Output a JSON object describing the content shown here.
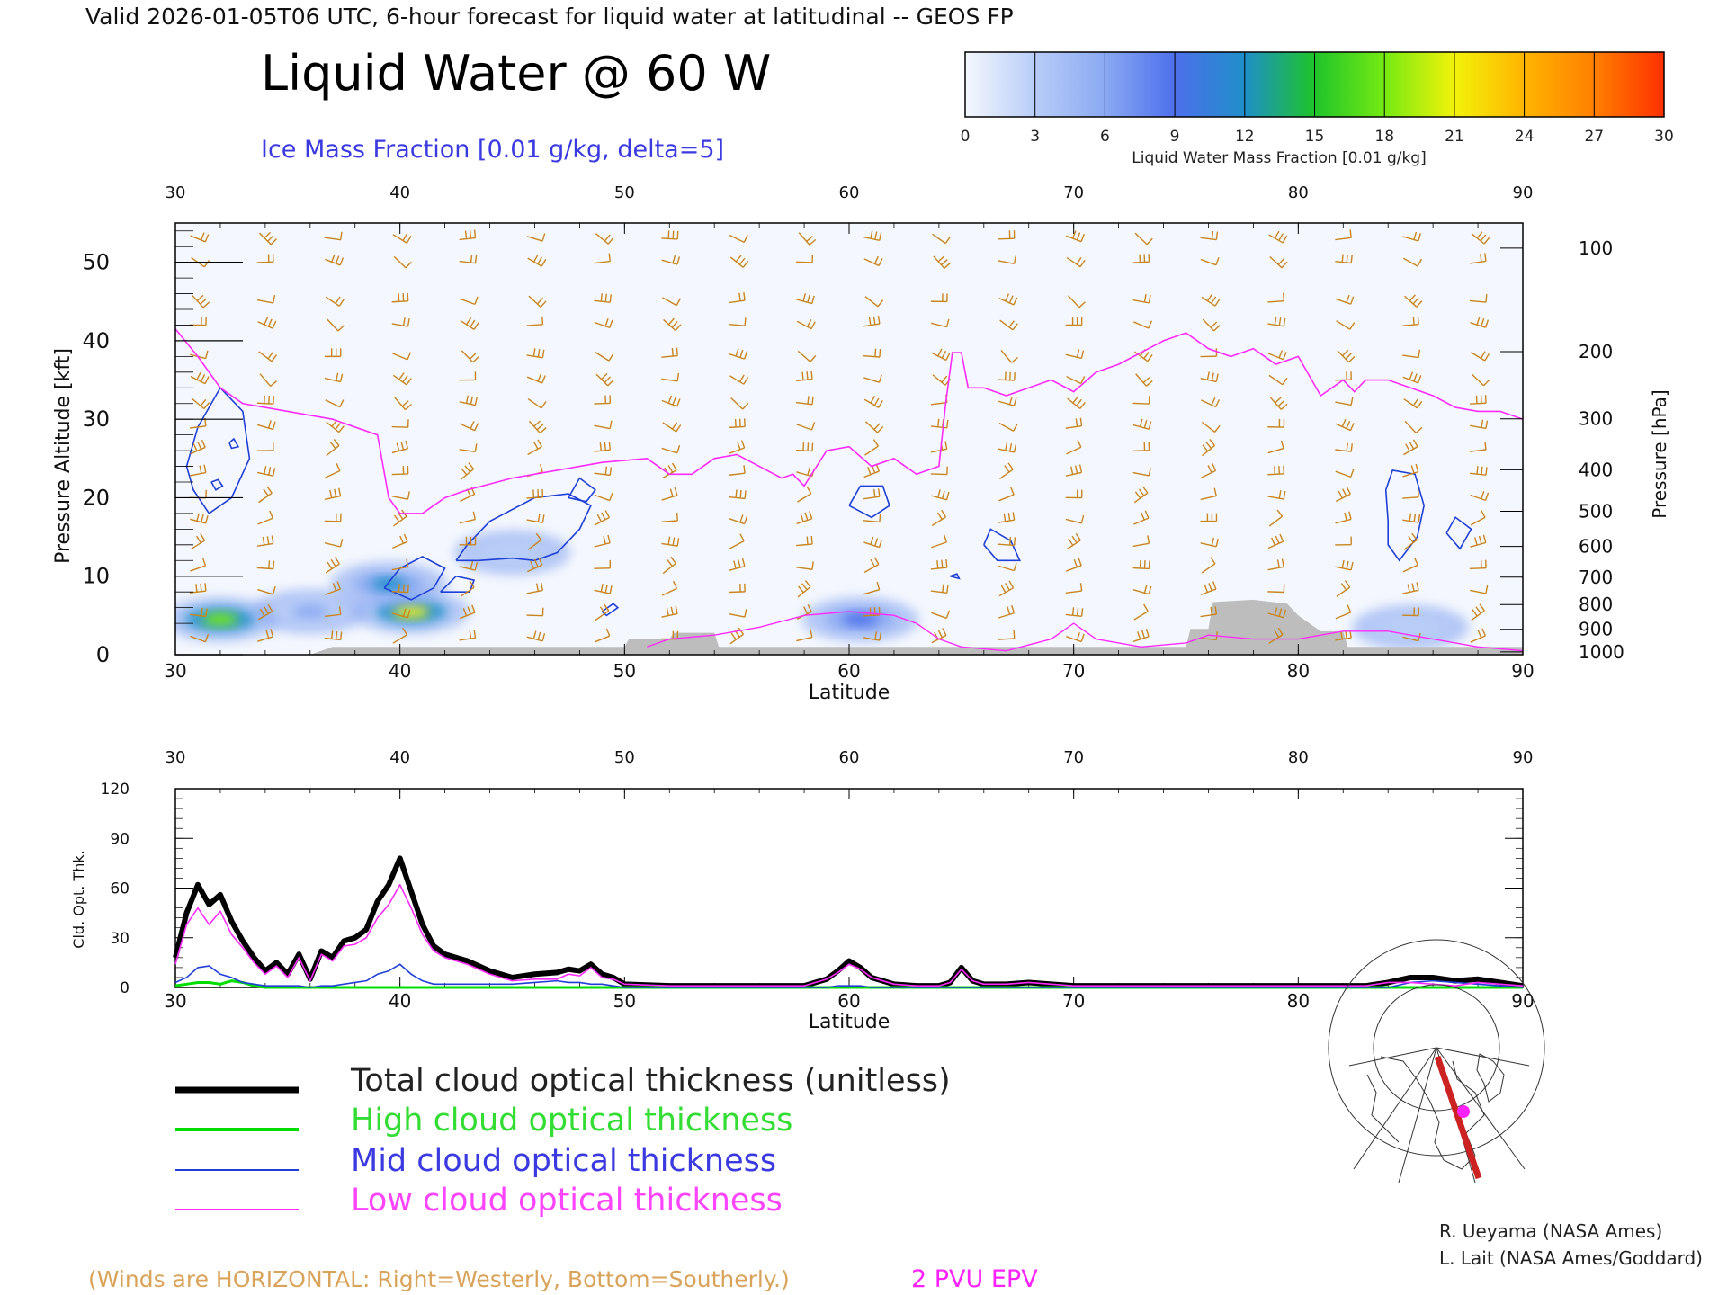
{
  "header": {
    "valid_line": "Valid 2026-01-05T06 UTC, 6-hour forecast for liquid water at latitudinal -- GEOS FP",
    "main_title": "Liquid Water @ 60 W",
    "ice_label": "Ice Mass Fraction [0.01 g/kg, delta=5]"
  },
  "colorbar": {
    "ticks": [
      "0",
      "3",
      "6",
      "9",
      "12",
      "15",
      "18",
      "21",
      "24",
      "27",
      "30"
    ],
    "label": "Liquid Water Mass Fraction [0.01 g/kg]",
    "colors": [
      "#f4f7fd",
      "#b8cdf7",
      "#8aa9f2",
      "#4d6fec",
      "#1f8fc9",
      "#1ec42a",
      "#75ea12",
      "#f2f20a",
      "#ffb400",
      "#ff7f00",
      "#ff3000"
    ]
  },
  "colors": {
    "wind_barb": "#c8861c",
    "epv": "#ff2bff",
    "ice_contour": "#1f3fd6",
    "terrain": "#bdbdbd",
    "total": "#000000",
    "high": "#00dd00",
    "mid": "#1f3fd6",
    "low": "#ff2bff"
  },
  "footer": {
    "winds_note": "(Winds are HORIZONTAL: Right=Westerly, Bottom=Southerly.)",
    "epv_label": "2 PVU EPV",
    "credit1": "R. Ueyama (NASA Ames)",
    "credit2": "L. Lait (NASA Ames/Goddard)"
  },
  "legend": {
    "total": "Total cloud optical thickness (unitless)",
    "high": "High cloud optical thickness",
    "mid": "Mid cloud optical thickness",
    "low": "Low cloud optical thickness"
  },
  "chart_data": [
    {
      "type": "heatmap",
      "title": "Liquid Water @ 60 W",
      "xlabel": "Latitude",
      "ylabel": "Pressure Altitude [kft]",
      "ylabel_right": "Pressure [hPa]",
      "xlim": [
        30,
        90
      ],
      "ylim": [
        0,
        55
      ],
      "x_ticks": [
        "30",
        "40",
        "50",
        "60",
        "70",
        "80",
        "90"
      ],
      "y_ticks": [
        "0",
        "10",
        "20",
        "30",
        "40",
        "50"
      ],
      "pressure_ticks": [
        "100",
        "200",
        "300",
        "400",
        "500",
        "600",
        "700",
        "800",
        "900",
        "1000"
      ],
      "epv_2pvu_line": [
        [
          30,
          41.5
        ],
        [
          31,
          38
        ],
        [
          32,
          34
        ],
        [
          33,
          32
        ],
        [
          35,
          31
        ],
        [
          37,
          30
        ],
        [
          39,
          28
        ],
        [
          39.5,
          20
        ],
        [
          40,
          18
        ],
        [
          41,
          18
        ],
        [
          42,
          20
        ],
        [
          43,
          21
        ],
        [
          45,
          22.5
        ],
        [
          47,
          23.5
        ],
        [
          49,
          24.5
        ],
        [
          51,
          25
        ],
        [
          52,
          23
        ],
        [
          53,
          23
        ],
        [
          54,
          25
        ],
        [
          55,
          25.5
        ],
        [
          56,
          24
        ],
        [
          57,
          22.5
        ],
        [
          57.5,
          23
        ],
        [
          58,
          21.5
        ],
        [
          59,
          26
        ],
        [
          60,
          26.5
        ],
        [
          61,
          24
        ],
        [
          62,
          25
        ],
        [
          63,
          23
        ],
        [
          64,
          24
        ],
        [
          64.3,
          32
        ],
        [
          64.6,
          38.5
        ],
        [
          65,
          38.5
        ],
        [
          65.3,
          34
        ],
        [
          66,
          34
        ],
        [
          67,
          33
        ],
        [
          68,
          34
        ],
        [
          69,
          35
        ],
        [
          70,
          33.5
        ],
        [
          71,
          36
        ],
        [
          72,
          37
        ],
        [
          73,
          38.5
        ],
        [
          74,
          40
        ],
        [
          75,
          41
        ],
        [
          76,
          39
        ],
        [
          77,
          38
        ],
        [
          78,
          39
        ],
        [
          79,
          37
        ],
        [
          80,
          38
        ],
        [
          81,
          33
        ],
        [
          82,
          35
        ],
        [
          82.5,
          33.5
        ],
        [
          83,
          35
        ],
        [
          84,
          35
        ],
        [
          85,
          34
        ],
        [
          86,
          33
        ],
        [
          87,
          31.5
        ],
        [
          88,
          31
        ],
        [
          89,
          31
        ],
        [
          90,
          30
        ]
      ],
      "epv_low_line": [
        [
          51,
          1
        ],
        [
          52,
          2
        ],
        [
          54,
          2.5
        ],
        [
          56,
          3.5
        ],
        [
          58,
          5
        ],
        [
          60,
          5.5
        ],
        [
          62,
          5
        ],
        [
          63,
          4
        ],
        [
          64,
          2
        ],
        [
          65,
          1
        ],
        [
          67,
          0.5
        ],
        [
          69,
          2
        ],
        [
          70,
          4
        ],
        [
          71,
          2
        ],
        [
          73,
          1
        ],
        [
          75,
          1.5
        ],
        [
          76,
          2.5
        ],
        [
          78,
          2
        ],
        [
          80,
          2
        ],
        [
          82,
          3
        ],
        [
          84,
          3
        ],
        [
          86,
          2
        ],
        [
          88,
          1
        ],
        [
          90,
          0.5
        ]
      ],
      "terrain": [
        [
          30,
          0
        ],
        [
          36,
          0
        ],
        [
          37,
          1
        ],
        [
          50,
          1
        ],
        [
          50.2,
          2
        ],
        [
          52,
          2
        ],
        [
          52.2,
          2.8
        ],
        [
          54,
          2.8
        ],
        [
          54.2,
          1
        ],
        [
          75,
          1
        ],
        [
          75.2,
          3.3
        ],
        [
          76,
          3.3
        ],
        [
          76.2,
          6.7
        ],
        [
          78,
          7
        ],
        [
          79.5,
          6.5
        ],
        [
          80,
          5
        ],
        [
          81,
          3
        ],
        [
          82,
          3
        ],
        [
          82.2,
          1
        ],
        [
          90,
          1
        ]
      ],
      "ice_contours": [
        [
          [
            30.5,
            24
          ],
          [
            31,
            29
          ],
          [
            32,
            34
          ],
          [
            33,
            31
          ],
          [
            33.3,
            25
          ],
          [
            32.5,
            20
          ],
          [
            31.5,
            18
          ],
          [
            30.8,
            21
          ],
          [
            30.5,
            24
          ]
        ],
        [
          [
            31.6,
            22
          ],
          [
            31.9,
            22.3
          ],
          [
            32.1,
            21.5
          ],
          [
            31.8,
            21
          ],
          [
            31.6,
            22
          ]
        ],
        [
          [
            32.4,
            27
          ],
          [
            32.6,
            27.5
          ],
          [
            32.8,
            26.5
          ],
          [
            32.5,
            26.3
          ],
          [
            32.4,
            27
          ]
        ],
        [
          [
            42.5,
            12
          ],
          [
            43,
            14
          ],
          [
            44,
            17
          ],
          [
            46,
            20
          ],
          [
            47.5,
            20.5
          ],
          [
            48.5,
            19
          ],
          [
            48,
            16
          ],
          [
            47,
            13
          ],
          [
            46,
            12
          ],
          [
            45,
            12.3
          ],
          [
            43.5,
            12
          ],
          [
            42.5,
            12
          ]
        ],
        [
          [
            47.5,
            20
          ],
          [
            48,
            22.5
          ],
          [
            48.7,
            21
          ],
          [
            48.3,
            19.5
          ],
          [
            47.5,
            20
          ]
        ],
        [
          [
            39.3,
            8.5
          ],
          [
            40,
            11
          ],
          [
            41,
            12.5
          ],
          [
            42,
            11
          ],
          [
            41.5,
            8.5
          ],
          [
            40.5,
            7
          ],
          [
            39.3,
            8.5
          ]
        ],
        [
          [
            41.8,
            8
          ],
          [
            42.5,
            10
          ],
          [
            43.3,
            9.5
          ],
          [
            43.1,
            8
          ],
          [
            41.8,
            8
          ]
        ],
        [
          [
            49,
            5.5
          ],
          [
            49.5,
            6.5
          ],
          [
            49.7,
            6
          ],
          [
            49.2,
            5
          ],
          [
            49,
            5.5
          ]
        ],
        [
          [
            60,
            19
          ],
          [
            60.5,
            21.5
          ],
          [
            61.5,
            21.5
          ],
          [
            61.8,
            19
          ],
          [
            61,
            17.5
          ],
          [
            60,
            19
          ]
        ],
        [
          [
            66,
            14
          ],
          [
            66.3,
            16
          ],
          [
            67.2,
            14.5
          ],
          [
            67.6,
            12
          ],
          [
            66.6,
            12
          ],
          [
            66,
            14
          ]
        ],
        [
          [
            64.5,
            10
          ],
          [
            64.8,
            10.3
          ],
          [
            64.9,
            9.7
          ],
          [
            64.5,
            10
          ]
        ],
        [
          [
            83.9,
            21
          ],
          [
            84.2,
            23.5
          ],
          [
            85.2,
            23
          ],
          [
            85.6,
            19
          ],
          [
            85.3,
            15
          ],
          [
            84.5,
            12
          ],
          [
            84,
            14
          ],
          [
            84,
            17
          ],
          [
            83.9,
            21
          ]
        ],
        [
          [
            86.6,
            15.5
          ],
          [
            87,
            17.5
          ],
          [
            87.7,
            16
          ],
          [
            87.2,
            13.5
          ],
          [
            86.6,
            15.5
          ]
        ]
      ],
      "liquid_water_blobs": [
        {
          "lat": 32,
          "alt": 4.5,
          "value": 18
        },
        {
          "lat": 36,
          "alt": 5.5,
          "value": 6
        },
        {
          "lat": 40.5,
          "alt": 5.5,
          "value": 21
        },
        {
          "lat": 39.5,
          "alt": 9,
          "value": 11
        },
        {
          "lat": 60.5,
          "alt": 4.5,
          "value": 9
        },
        {
          "lat": 45,
          "alt": 13,
          "value": 3
        },
        {
          "lat": 85,
          "alt": 3.5,
          "value": 3
        }
      ],
      "wind_barb_latitudes": [
        31,
        34,
        37,
        40,
        43,
        46,
        49,
        52,
        55,
        58,
        61,
        64,
        67,
        70,
        73,
        76,
        79,
        82,
        85,
        88
      ],
      "wind_barb_levels_kft": [
        2,
        5,
        8,
        11,
        14,
        17,
        20,
        23,
        26,
        29,
        32,
        35,
        38,
        42,
        45,
        50,
        53
      ]
    },
    {
      "type": "line",
      "xlabel": "Latitude",
      "ylabel": "Cld. Opt. Thk.",
      "xlim": [
        30,
        90
      ],
      "ylim": [
        0,
        120
      ],
      "x_ticks": [
        "30",
        "40",
        "50",
        "60",
        "70",
        "80",
        "90"
      ],
      "y_ticks": [
        "0",
        "30",
        "60",
        "90",
        "120"
      ],
      "x": [
        30,
        30.5,
        31,
        31.5,
        32,
        32.5,
        33,
        33.5,
        34,
        34.5,
        35,
        35.5,
        36,
        36.5,
        37,
        37.5,
        38,
        38.5,
        39,
        39.5,
        40,
        40.5,
        41,
        41.5,
        42,
        43,
        44,
        45,
        46,
        47,
        47.5,
        48,
        48.5,
        49,
        49.5,
        50,
        52,
        55,
        57,
        58,
        59,
        59.5,
        60,
        60.5,
        61,
        62,
        63,
        64,
        64.5,
        65,
        65.5,
        66,
        67,
        68,
        69,
        70,
        75,
        80,
        83,
        84,
        85,
        86,
        87,
        88,
        89,
        90
      ],
      "series": [
        {
          "name": "Total cloud optical thickness (unitless)",
          "key": "total",
          "values": [
            18,
            45,
            62,
            50,
            56,
            40,
            28,
            18,
            10,
            15,
            8,
            20,
            5,
            22,
            18,
            28,
            30,
            35,
            52,
            62,
            78,
            58,
            38,
            25,
            20,
            16,
            10,
            6,
            8,
            9,
            11,
            10,
            14,
            8,
            6,
            2,
            1,
            1,
            1,
            1,
            5,
            10,
            16,
            12,
            6,
            2,
            1,
            1,
            3,
            12,
            4,
            2,
            2,
            3,
            2,
            1,
            1,
            1,
            1,
            3,
            6,
            6,
            4,
            5,
            3,
            1
          ]
        },
        {
          "name": "High cloud optical thickness",
          "key": "high",
          "values": [
            1,
            2,
            3,
            3,
            2,
            4,
            3,
            1,
            0,
            0,
            0,
            0,
            0,
            0,
            0,
            0,
            0,
            0,
            0,
            0,
            0,
            0,
            0,
            0,
            0,
            0,
            0,
            0,
            0,
            0,
            0,
            0,
            0,
            0,
            0,
            0,
            0,
            0,
            0,
            0,
            0,
            0,
            0,
            0,
            0,
            0,
            0,
            0,
            0,
            0,
            0,
            0,
            0,
            0,
            0,
            0,
            0,
            0,
            0,
            0,
            0,
            0,
            0,
            0,
            0,
            0
          ]
        },
        {
          "name": "Mid cloud optical thickness",
          "key": "mid",
          "values": [
            3,
            6,
            12,
            13,
            8,
            6,
            3,
            2,
            1,
            1,
            1,
            1,
            0,
            1,
            1,
            2,
            3,
            4,
            8,
            10,
            14,
            8,
            4,
            2,
            2,
            2,
            2,
            2,
            3,
            4,
            3,
            3,
            2,
            2,
            1,
            0,
            0,
            0,
            0,
            0,
            0,
            1,
            1,
            1,
            0,
            0,
            0,
            0,
            0,
            0,
            0,
            0,
            0,
            0,
            0,
            0,
            0,
            0,
            0,
            0,
            3,
            4,
            3,
            2,
            1,
            0
          ]
        },
        {
          "name": "Low cloud optical thickness",
          "key": "low",
          "values": [
            14,
            38,
            48,
            38,
            46,
            32,
            24,
            15,
            8,
            13,
            6,
            18,
            4,
            20,
            16,
            25,
            26,
            30,
            42,
            50,
            62,
            48,
            32,
            22,
            18,
            14,
            8,
            4,
            5,
            5,
            8,
            7,
            12,
            6,
            5,
            2,
            1,
            1,
            1,
            1,
            5,
            9,
            14,
            11,
            6,
            2,
            1,
            1,
            3,
            11,
            4,
            2,
            2,
            3,
            2,
            1,
            1,
            1,
            1,
            3,
            3,
            2,
            1,
            3,
            2,
            1
          ]
        }
      ]
    }
  ]
}
